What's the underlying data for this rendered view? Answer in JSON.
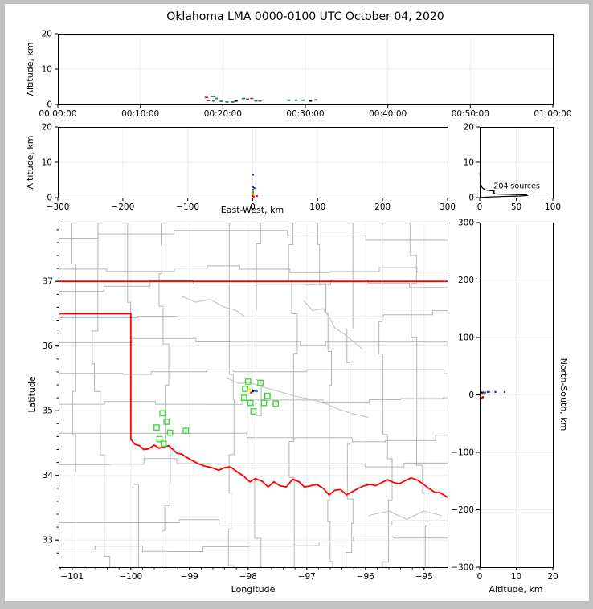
{
  "title": "Oklahoma LMA 0000-0100 UTC October 04, 2020",
  "style": {
    "county_line": "#b5b5b5",
    "river_line": "#c3c3c3",
    "state_border": "#ff0000",
    "station_color": "#3ddc3d",
    "grid_color": "#ededed",
    "axis_color": "#000000",
    "hist_line": "#000000",
    "frame_color": "#c1c1c1"
  },
  "chart_data": [
    {
      "id": "time_height",
      "type": "scatter",
      "ylabel": "Altitude, km",
      "xlabel": "",
      "xlim": [
        0,
        60
      ],
      "ylim": [
        0,
        20
      ],
      "xticks": {
        "values": [
          0,
          10,
          20,
          30,
          40,
          50,
          60
        ],
        "labels": [
          "00:00:00",
          "00:10:00",
          "00:20:00",
          "00:30:00",
          "00:40:00",
          "00:50:00",
          "01:00:00"
        ]
      },
      "yticks": {
        "values": [
          0,
          10,
          20
        ],
        "labels": [
          "0",
          "10",
          "20"
        ]
      },
      "points": [
        {
          "t": 18.0,
          "alt": 2.0,
          "c": "#cc2222"
        },
        {
          "t": 18.2,
          "alt": 1.1,
          "c": "#cc2222"
        },
        {
          "t": 18.8,
          "alt": 2.3,
          "c": "#2e6b6b"
        },
        {
          "t": 19.2,
          "alt": 1.7,
          "c": "#2e6b6b"
        },
        {
          "t": 18.9,
          "alt": 1.0,
          "c": "#2e6b6b"
        },
        {
          "t": 19.8,
          "alt": 0.9,
          "c": "#2e6b6b"
        },
        {
          "t": 20.5,
          "alt": 0.7,
          "c": "#2e6b6b"
        },
        {
          "t": 21.2,
          "alt": 0.7,
          "c": "#2e6b6b"
        },
        {
          "t": 21.6,
          "alt": 1.0,
          "c": "#000000"
        },
        {
          "t": 22.5,
          "alt": 1.7,
          "c": "#2e6b6b"
        },
        {
          "t": 23.0,
          "alt": 1.5,
          "c": "#2e6b6b"
        },
        {
          "t": 23.5,
          "alt": 1.7,
          "c": "#cc2222"
        },
        {
          "t": 24.0,
          "alt": 1.0,
          "c": "#2e6b6b"
        },
        {
          "t": 24.5,
          "alt": 1.0,
          "c": "#2e6b6b"
        },
        {
          "t": 28.0,
          "alt": 1.2,
          "c": "#2e6b6b"
        },
        {
          "t": 28.9,
          "alt": 1.2,
          "c": "#2e6b6b"
        },
        {
          "t": 29.7,
          "alt": 1.2,
          "c": "#2e6b6b"
        },
        {
          "t": 30.6,
          "alt": 1.0,
          "c": "#000000"
        },
        {
          "t": 31.3,
          "alt": 1.3,
          "c": "#cc2222"
        }
      ]
    },
    {
      "id": "ew_height",
      "type": "scatter",
      "ylabel": "Altitude, km",
      "xlabel": "East-West, km",
      "xlim": [
        -300,
        300
      ],
      "ylim": [
        0,
        20
      ],
      "xticks": {
        "values": [
          -300,
          -200,
          -100,
          0,
          100,
          200,
          300
        ],
        "labels": [
          "−300",
          "−200",
          "−100",
          "0",
          "100",
          "200",
          "300"
        ]
      },
      "yticks": {
        "values": [
          0,
          10,
          20
        ],
        "labels": [
          "0",
          "10",
          "20"
        ]
      },
      "points": [
        {
          "x": 0.5,
          "alt": 6.5,
          "c": "#2222ff"
        },
        {
          "x": 0.5,
          "alt": 3.0,
          "c": "#2222ff"
        },
        {
          "x": 2.5,
          "alt": 2.7,
          "c": "#2222ff"
        },
        {
          "x": 0.3,
          "alt": 2.2,
          "c": "#000000"
        },
        {
          "x": 0.5,
          "alt": 1.5,
          "c": "#00cc00"
        },
        {
          "x": 0.0,
          "alt": 1.0,
          "c": "#ff8800"
        },
        {
          "x": 0.2,
          "alt": 0.5,
          "c": "#ff0000"
        },
        {
          "x": 6.5,
          "alt": 0.4,
          "c": "#ff0000"
        },
        {
          "x": 1.5,
          "alt": 0.3,
          "c": "#ff0000"
        }
      ]
    },
    {
      "id": "alt_hist",
      "type": "line",
      "xlabel": "",
      "ylabel": "",
      "xlim": [
        0,
        100
      ],
      "ylim": [
        0,
        20
      ],
      "xticks": {
        "values": [
          0,
          50,
          100
        ],
        "labels": [
          "0",
          "50",
          "100"
        ]
      },
      "yticks": {
        "values": [
          0,
          10,
          20
        ],
        "labels": [
          "0",
          "10",
          "20"
        ]
      },
      "annotation": {
        "text": "204 sources",
        "x": 19,
        "y": 2.6
      },
      "line": [
        [
          0,
          0
        ],
        [
          15,
          0.2
        ],
        [
          55,
          0.45
        ],
        [
          65,
          0.6
        ],
        [
          64,
          0.8
        ],
        [
          30,
          0.95
        ],
        [
          18,
          1.1
        ],
        [
          20,
          1.35
        ],
        [
          19,
          1.6
        ],
        [
          20,
          1.85
        ],
        [
          10,
          2.1
        ],
        [
          6,
          2.4
        ],
        [
          4,
          2.7
        ],
        [
          3,
          3.0
        ],
        [
          2,
          3.4
        ],
        [
          1.5,
          3.9
        ],
        [
          1,
          4.5
        ],
        [
          1,
          5.2
        ],
        [
          0.7,
          6.0
        ],
        [
          0.4,
          6.6
        ],
        [
          0,
          7.0
        ]
      ]
    },
    {
      "id": "map",
      "type": "scatter",
      "xlabel": "Longitude",
      "ylabel": "Latitude",
      "xlim": [
        -101.23,
        -94.6
      ],
      "ylim": [
        32.58,
        37.91
      ],
      "xticks": {
        "values": [
          -101,
          -100,
          -99,
          -98,
          -97,
          -96,
          -95
        ],
        "labels": [
          "−101",
          "−100",
          "−99",
          "−98",
          "−97",
          "−96",
          "−95"
        ]
      },
      "yticks": {
        "values": [
          33,
          34,
          35,
          36,
          37
        ],
        "labels": [
          "33",
          "34",
          "35",
          "36",
          "37"
        ]
      },
      "minor_step": 0.2,
      "stations": [
        [
          -98.0,
          35.45
        ],
        [
          -97.79,
          35.43
        ],
        [
          -98.05,
          35.34
        ],
        [
          -97.67,
          35.23
        ],
        [
          -98.07,
          35.2
        ],
        [
          -97.96,
          35.12
        ],
        [
          -97.73,
          35.12
        ],
        [
          -97.53,
          35.11
        ],
        [
          -97.91,
          34.99
        ],
        [
          -99.46,
          34.96
        ],
        [
          -99.39,
          34.83
        ],
        [
          -99.56,
          34.74
        ],
        [
          -99.33,
          34.66
        ],
        [
          -99.06,
          34.69
        ],
        [
          -99.51,
          34.56
        ],
        [
          -99.44,
          34.49
        ]
      ],
      "sources": [
        {
          "lon": -97.99,
          "lat": 35.31,
          "c": "#ffff00"
        },
        {
          "lon": -97.97,
          "lat": 35.33,
          "c": "#ffcc00"
        },
        {
          "lon": -97.93,
          "lat": 35.32,
          "c": "#00cccc"
        },
        {
          "lon": -97.89,
          "lat": 35.31,
          "c": "#2222ff"
        },
        {
          "lon": -97.95,
          "lat": 35.28,
          "c": "#ff0000"
        },
        {
          "lon": -97.92,
          "lat": 35.3,
          "c": "#000000"
        },
        {
          "lon": -97.85,
          "lat": 35.3,
          "c": "#00aaff"
        }
      ],
      "state_border": [
        [
          [
            -101.23,
            37.0
          ],
          [
            -94.6,
            37.0
          ]
        ],
        [
          [
            -101.23,
            36.5
          ],
          [
            -100.0,
            36.5
          ],
          [
            -100.0,
            34.56
          ]
        ],
        [
          [
            -100.0,
            34.56
          ],
          [
            -99.93,
            34.48
          ],
          [
            -99.85,
            34.46
          ],
          [
            -99.78,
            34.4
          ],
          [
            -99.7,
            34.41
          ],
          [
            -99.6,
            34.47
          ],
          [
            -99.52,
            34.42
          ],
          [
            -99.44,
            34.44
          ],
          [
            -99.36,
            34.46
          ],
          [
            -99.28,
            34.4
          ],
          [
            -99.21,
            34.34
          ],
          [
            -99.13,
            34.33
          ],
          [
            -99.05,
            34.28
          ],
          [
            -98.95,
            34.23
          ],
          [
            -98.85,
            34.18
          ],
          [
            -98.73,
            34.14
          ],
          [
            -98.62,
            34.12
          ],
          [
            -98.5,
            34.08
          ],
          [
            -98.4,
            34.12
          ],
          [
            -98.3,
            34.13
          ],
          [
            -98.18,
            34.05
          ],
          [
            -98.08,
            33.99
          ],
          [
            -97.97,
            33.9
          ],
          [
            -97.88,
            33.95
          ],
          [
            -97.76,
            33.91
          ],
          [
            -97.66,
            33.82
          ],
          [
            -97.56,
            33.9
          ],
          [
            -97.46,
            33.84
          ],
          [
            -97.35,
            33.82
          ],
          [
            -97.24,
            33.94
          ],
          [
            -97.13,
            33.9
          ],
          [
            -97.04,
            33.82
          ],
          [
            -96.93,
            33.84
          ],
          [
            -96.83,
            33.86
          ],
          [
            -96.72,
            33.8
          ],
          [
            -96.62,
            33.7
          ],
          [
            -96.52,
            33.77
          ],
          [
            -96.42,
            33.78
          ],
          [
            -96.32,
            33.7
          ],
          [
            -96.22,
            33.75
          ],
          [
            -96.12,
            33.8
          ],
          [
            -96.02,
            33.84
          ],
          [
            -95.92,
            33.86
          ],
          [
            -95.82,
            33.84
          ],
          [
            -95.72,
            33.89
          ],
          [
            -95.62,
            33.93
          ],
          [
            -95.52,
            33.89
          ],
          [
            -95.42,
            33.87
          ],
          [
            -95.32,
            33.92
          ],
          [
            -95.22,
            33.96
          ],
          [
            -95.12,
            33.93
          ],
          [
            -95.02,
            33.87
          ],
          [
            -94.92,
            33.8
          ],
          [
            -94.82,
            33.74
          ],
          [
            -94.72,
            33.73
          ],
          [
            -94.6,
            33.66
          ]
        ]
      ],
      "rivers": [
        [
          [
            -97.05,
            36.7
          ],
          [
            -96.9,
            36.55
          ],
          [
            -96.72,
            36.58
          ],
          [
            -96.6,
            36.42
          ],
          [
            -96.52,
            36.28
          ],
          [
            -96.35,
            36.18
          ],
          [
            -96.18,
            36.05
          ],
          [
            -96.05,
            35.95
          ]
        ],
        [
          [
            -98.35,
            35.5
          ],
          [
            -98.15,
            35.42
          ],
          [
            -97.98,
            35.44
          ],
          [
            -97.8,
            35.38
          ],
          [
            -97.6,
            35.33
          ],
          [
            -97.4,
            35.28
          ],
          [
            -97.18,
            35.22
          ],
          [
            -96.95,
            35.18
          ],
          [
            -96.7,
            35.12
          ],
          [
            -96.45,
            35.02
          ],
          [
            -96.2,
            34.95
          ],
          [
            -95.95,
            34.9
          ]
        ],
        [
          [
            -99.15,
            36.78
          ],
          [
            -98.9,
            36.68
          ],
          [
            -98.65,
            36.72
          ],
          [
            -98.4,
            36.6
          ],
          [
            -98.2,
            36.55
          ],
          [
            -98.05,
            36.45
          ]
        ],
        [
          [
            -95.95,
            33.38
          ],
          [
            -95.6,
            33.45
          ],
          [
            -95.3,
            33.32
          ],
          [
            -95.0,
            33.45
          ],
          [
            -94.7,
            33.38
          ]
        ]
      ]
    },
    {
      "id": "ns_height",
      "type": "scatter",
      "xlabel": "Altitude, km",
      "ylabel": "North-South, km",
      "xlim": [
        0,
        20
      ],
      "ylim": [
        -300,
        300
      ],
      "xticks": {
        "values": [
          0,
          10,
          20
        ],
        "labels": [
          "0",
          "10",
          "20"
        ]
      },
      "yticks": {
        "values": [
          300,
          200,
          100,
          0,
          -100,
          -200,
          -300
        ],
        "labels": [
          "300",
          "200",
          "100",
          "0",
          "−100",
          "−200",
          "−300"
        ]
      },
      "points": [
        {
          "alt": 0.3,
          "ns": 4,
          "c": "#000000"
        },
        {
          "alt": 0.6,
          "ns": 4,
          "c": "#000000"
        },
        {
          "alt": 1.0,
          "ns": 4,
          "c": "#cc0000"
        },
        {
          "alt": 1.5,
          "ns": 4,
          "c": "#2222cc"
        },
        {
          "alt": 2.2,
          "ns": 5,
          "c": "#2222cc"
        },
        {
          "alt": 2.6,
          "ns": 5,
          "c": "#4444ff"
        },
        {
          "alt": 4.3,
          "ns": 5,
          "c": "#2222cc"
        },
        {
          "alt": 6.8,
          "ns": 5,
          "c": "#2222ff"
        },
        {
          "alt": 0.3,
          "ns": -4,
          "c": "#cc0000"
        },
        {
          "alt": 0.5,
          "ns": -6,
          "c": "#ff0000"
        },
        {
          "alt": 0.9,
          "ns": -4,
          "c": "#880000"
        }
      ]
    }
  ]
}
